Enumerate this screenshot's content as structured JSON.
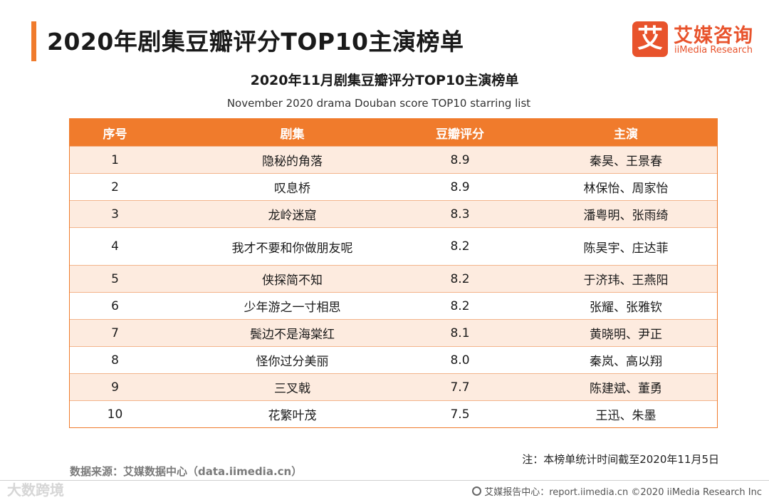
{
  "header": {
    "title": "2020年剧集豆瓣评分TOP10主演榜单"
  },
  "logo": {
    "mark": "艾",
    "cn": "艾媒咨询",
    "en": "iiMedia Research"
  },
  "table": {
    "title": "2020年11月剧集豆瓣评分TOP10主演榜单",
    "subtitle": "November 2020 drama Douban score TOP10 starring list",
    "columns": [
      "序号",
      "剧集",
      "豆瓣评分",
      "主演"
    ],
    "rows": [
      [
        "1",
        "隐秘的角落",
        "8.9",
        "秦昊、王景春"
      ],
      [
        "2",
        "叹息桥",
        "8.9",
        "林保怡、周家怡"
      ],
      [
        "3",
        "龙岭迷窟",
        "8.3",
        "潘粤明、张雨绮"
      ],
      [
        "4",
        "我才不要和你做朋友呢",
        "8.2",
        "陈昊宇、庄达菲"
      ],
      [
        "5",
        "侠探简不知",
        "8.2",
        "于济玮、王燕阳"
      ],
      [
        "6",
        "少年游之一寸相思",
        "8.2",
        "张耀、张雅钦"
      ],
      [
        "7",
        "鬓边不是海棠红",
        "8.1",
        "黄晓明、尹正"
      ],
      [
        "8",
        "怪你过分美丽",
        "8.0",
        "秦岚、高以翔"
      ],
      [
        "9",
        "三叉戟",
        "7.7",
        "陈建斌、董勇"
      ],
      [
        "10",
        "花繁叶茂",
        "7.5",
        "王迅、朱墨"
      ]
    ]
  },
  "note": "注：本榜单统计时间截至2020年11月5日",
  "source": "数据来源：艾媒数据中心（data.iimedia.cn）",
  "footer": {
    "text": "艾媒报告中心：report.iimedia.cn  ©2020  iiMedia Research  Inc"
  },
  "watermark": "大数跨境",
  "colors": {
    "accent": "#f07b2c",
    "row_alt": "#fdebdf",
    "brand": "#e8532c"
  }
}
